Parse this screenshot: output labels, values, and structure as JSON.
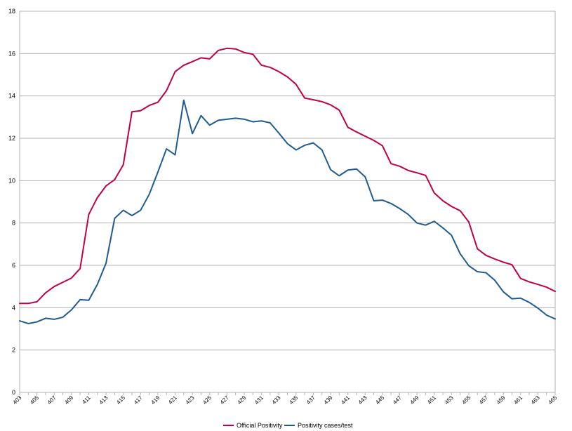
{
  "chart_data": {
    "type": "line",
    "title": "",
    "xlabel": "",
    "ylabel": "",
    "ylim": [
      0,
      18
    ],
    "y_ticks": [
      0,
      2,
      4,
      6,
      8,
      10,
      12,
      14,
      16,
      18
    ],
    "x_tick_labels": [
      "403",
      "405",
      "407",
      "409",
      "411",
      "413",
      "415",
      "417",
      "419",
      "421",
      "423",
      "425",
      "427",
      "429",
      "431",
      "433",
      "435",
      "437",
      "439",
      "441",
      "443",
      "445",
      "447",
      "449",
      "451",
      "453",
      "455",
      "457",
      "459",
      "461",
      "463",
      "465"
    ],
    "x": [
      403,
      404,
      405,
      406,
      407,
      408,
      409,
      410,
      411,
      412,
      413,
      414,
      415,
      416,
      417,
      418,
      419,
      420,
      421,
      422,
      423,
      424,
      425,
      426,
      427,
      428,
      429,
      430,
      431,
      432,
      433,
      434,
      435,
      436,
      437,
      438,
      439,
      440,
      441,
      442,
      443,
      444,
      445,
      446,
      447,
      448,
      449,
      450,
      451,
      452,
      453,
      454,
      455,
      456,
      457,
      458,
      459,
      460,
      461,
      462,
      463,
      464,
      465
    ],
    "grid": true,
    "legend_position": "bottom",
    "series": [
      {
        "name": "Official Positivity",
        "color": "#c0004b",
        "values": [
          4.2,
          4.2,
          4.28,
          4.7,
          5.0,
          5.2,
          5.4,
          5.85,
          8.4,
          9.2,
          9.75,
          10.05,
          10.75,
          13.25,
          13.3,
          13.55,
          13.7,
          14.25,
          15.15,
          15.45,
          15.62,
          15.8,
          15.75,
          16.15,
          16.25,
          16.22,
          16.05,
          15.97,
          15.45,
          15.35,
          15.15,
          14.9,
          14.55,
          13.9,
          13.82,
          13.73,
          13.58,
          13.33,
          12.52,
          12.3,
          12.1,
          11.9,
          11.65,
          10.8,
          10.68,
          10.48,
          10.37,
          10.25,
          9.42,
          9.05,
          8.78,
          8.58,
          8.05,
          6.78,
          6.47,
          6.3,
          6.15,
          6.03,
          5.38,
          5.22,
          5.1,
          4.97,
          4.77
        ]
      },
      {
        "name": "Positivity cases/test",
        "color": "#1f5b92",
        "values": [
          3.38,
          3.25,
          3.33,
          3.5,
          3.45,
          3.55,
          3.9,
          4.38,
          4.35,
          5.1,
          6.1,
          8.22,
          8.6,
          8.35,
          8.6,
          9.35,
          10.4,
          11.5,
          11.22,
          13.8,
          12.22,
          13.07,
          12.62,
          12.85,
          12.9,
          12.95,
          12.9,
          12.78,
          12.82,
          12.73,
          12.25,
          11.75,
          11.45,
          11.67,
          11.78,
          11.45,
          10.52,
          10.23,
          10.5,
          10.55,
          10.18,
          9.05,
          9.08,
          8.92,
          8.68,
          8.4,
          8.0,
          7.9,
          8.08,
          7.77,
          7.42,
          6.55,
          5.98,
          5.7,
          5.65,
          5.3,
          4.75,
          4.42,
          4.45,
          4.25,
          3.98,
          3.65,
          3.47
        ]
      }
    ]
  }
}
